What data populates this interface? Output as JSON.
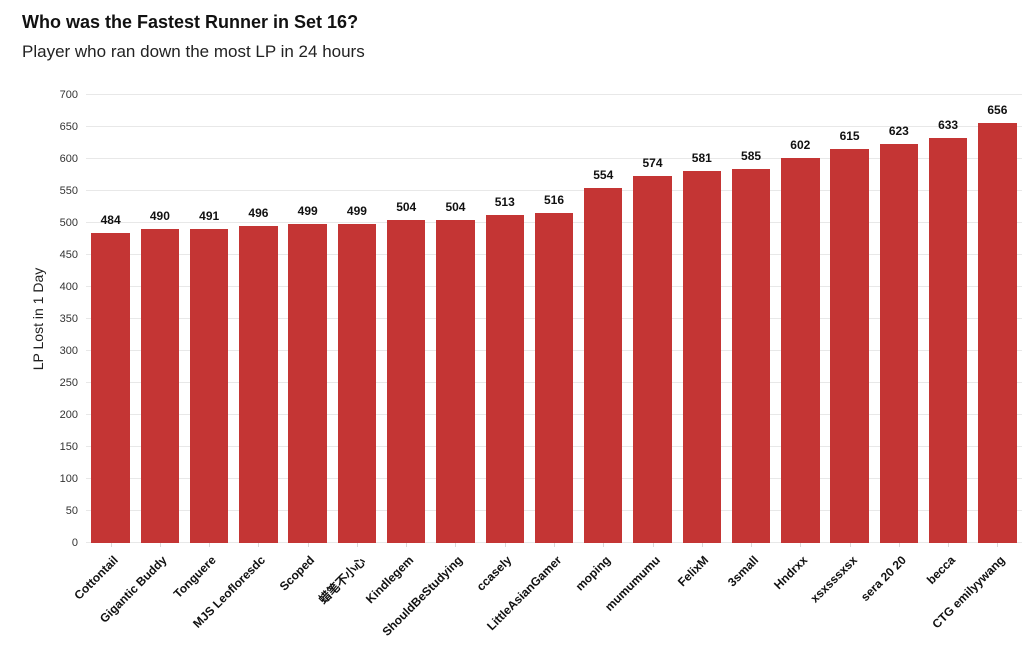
{
  "header": {
    "title": "Who was the Fastest Runner in Set 16?",
    "subtitle": "Player who ran down the most LP in 24 hours"
  },
  "chart_data": {
    "type": "bar",
    "title": "Who was the Fastest Runner in Set 16?",
    "subtitle": "Player who ran down the most LP in 24 hours",
    "categories": [
      "Cottontail",
      "Gigantic Buddy",
      "Tonguere",
      "MJS Leofloresdc",
      "Scoped",
      "蜡笔不小心",
      "Kindlegem",
      "ShouldBeStudying",
      "ccasely",
      "LittleAsianGamer",
      "moping",
      "mumumumu",
      "FelixM",
      "3small",
      "Hndrxx",
      "xsxsssxsx",
      "sera 20 20",
      "becca",
      "CTG emilyywang"
    ],
    "values": [
      484,
      490,
      491,
      496,
      499,
      499,
      504,
      504,
      513,
      516,
      554,
      574,
      581,
      585,
      602,
      615,
      623,
      633,
      656
    ],
    "value_labels": [
      "484",
      "490",
      "491",
      "496",
      "499",
      "499",
      "504",
      "504",
      "513",
      "516",
      "554",
      "574",
      "581",
      "585",
      "602",
      "615",
      "623",
      "633",
      "656"
    ],
    "xlabel": "",
    "ylabel": "LP Lost in 1 Day",
    "ylim": [
      0,
      700
    ],
    "ytick_step": 50,
    "ytick_labels": [
      "0",
      "50",
      "100",
      "150",
      "200",
      "250",
      "300",
      "350",
      "400",
      "450",
      "500",
      "550",
      "600",
      "650",
      "700"
    ],
    "grid": true,
    "legend_position": "none",
    "bar_label_position": "above"
  },
  "colors": {
    "bar": "#c43534",
    "grid": "#e8e8e8",
    "title_text": "#111111",
    "tick_text": "#333333",
    "background": "#ffffff"
  }
}
